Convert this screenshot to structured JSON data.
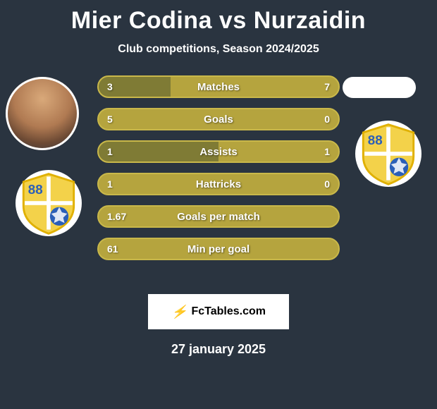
{
  "header": {
    "title": "Mier Codina vs Nurzaidin",
    "subtitle": "Club competitions, Season 2024/2025"
  },
  "players": {
    "left": {
      "name": "Mier Codina"
    },
    "right": {
      "name": "Nurzaidin"
    }
  },
  "badge": {
    "number": "88",
    "bg_color": "#ffffff",
    "shield_fill": "#f3d24a",
    "shield_stroke": "#e0b000",
    "cross_color": "#ffffff",
    "ball_fill": "#2b5fb8",
    "number_color": "#2b5fb8"
  },
  "bars": {
    "track_color": "#b5a43e",
    "track_border": "#c9b84a",
    "fill_color": "#3f4a2a",
    "text_color": "#ffffff",
    "rows": [
      {
        "label": "Matches",
        "left": "3",
        "right": "7",
        "left_pct": 30,
        "right_pct": 70
      },
      {
        "label": "Goals",
        "left": "5",
        "right": "0",
        "left_pct": 100,
        "right_pct": 0
      },
      {
        "label": "Assists",
        "left": "1",
        "right": "1",
        "left_pct": 50,
        "right_pct": 50
      },
      {
        "label": "Hattricks",
        "left": "1",
        "right": "0",
        "left_pct": 100,
        "right_pct": 0
      },
      {
        "label": "Goals per match",
        "left": "1.67",
        "right": "",
        "left_pct": 100,
        "right_pct": 0
      },
      {
        "label": "Min per goal",
        "left": "61",
        "right": "",
        "left_pct": 100,
        "right_pct": 0
      }
    ]
  },
  "footer": {
    "brand": "FcTables.com",
    "date": "27 january 2025"
  },
  "colors": {
    "background": "#2a3440",
    "title": "#ffffff"
  }
}
